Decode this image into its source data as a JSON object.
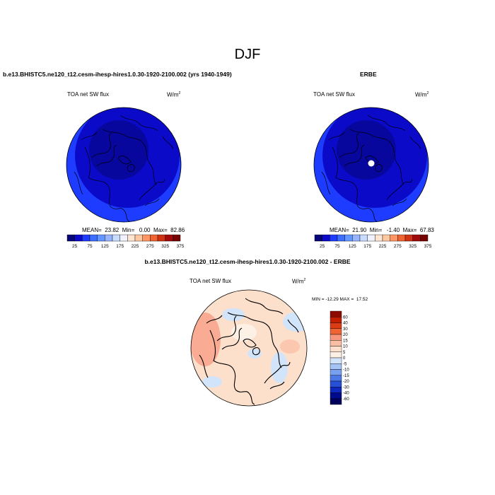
{
  "title": "DJF",
  "panels": [
    {
      "title": "b.e13.BHISTC5.ne120_t12.cesm-ihesp-hires1.0.30-1920-2100.002 (yrs 1940-1949)",
      "variable": "TOA net SW flux",
      "units_base": "W/m",
      "units_exp": "2",
      "stats": "MEAN=  23.82  Min=   0.00  Max=  82.86"
    },
    {
      "title": "ERBE",
      "variable": "TOA net SW flux",
      "units_base": "W/m",
      "units_exp": "2",
      "stats": "MEAN=  21.90  Min=   -1.40  Max=  67.83"
    },
    {
      "title": "b.e13.BHISTC5.ne120_t12.cesm-ihesp-hires1.0.30-1920-2100.002 - ERBE",
      "variable": "TOA net SW flux",
      "units_base": "W/m",
      "units_exp": "2",
      "stats": "MIN = -12.29 MAX =  17.52"
    }
  ],
  "abs_colorbar": {
    "labels": [
      "25",
      "75",
      "125",
      "175",
      "225",
      "275",
      "325",
      "375"
    ],
    "colors": [
      "#06067a",
      "#0a0ac8",
      "#1e3cff",
      "#3c6eff",
      "#6496ff",
      "#96b4ff",
      "#c8dcff",
      "#f0f0ff",
      "#ffe6d2",
      "#ffc8a0",
      "#ff9664",
      "#f06432",
      "#d23214",
      "#a00a0a",
      "#780000"
    ]
  },
  "diff_colorbar": {
    "labels": [
      "60",
      "40",
      "30",
      "20",
      "15",
      "10",
      "5",
      "0",
      "-5",
      "-10",
      "-15",
      "-20",
      "-30",
      "-40",
      "-60"
    ],
    "colors": [
      "#8c0a00",
      "#c31e00",
      "#dc3c14",
      "#ee6432",
      "#f7967a",
      "#fabea2",
      "#fde0cc",
      "#fdf1e6",
      "#d2e4fa",
      "#a5c3f5",
      "#78a0f0",
      "#4b78e6",
      "#2850d7",
      "#0f28be",
      "#000a8c",
      "#00005a"
    ]
  },
  "colors": {
    "land_outline": "#000000"
  }
}
